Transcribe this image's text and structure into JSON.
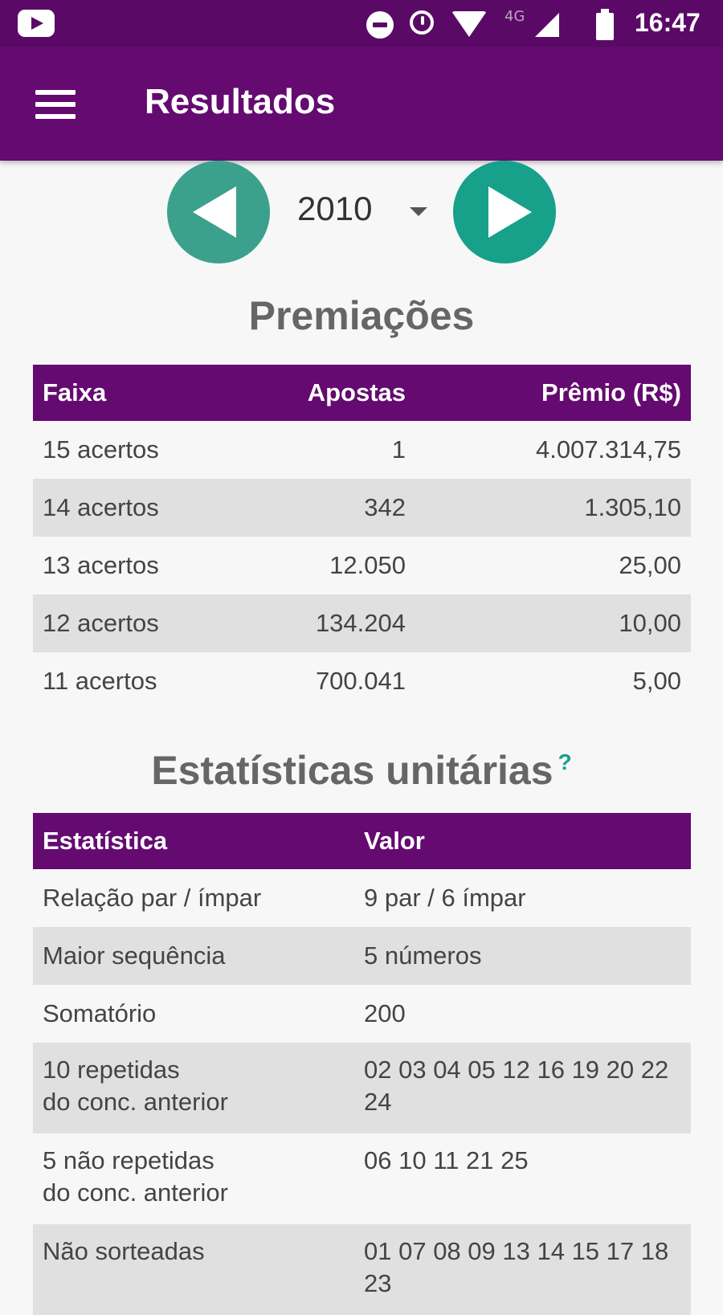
{
  "status_bar": {
    "network": "4G",
    "time": "16:47",
    "icons": [
      "youtube-icon",
      "do-not-disturb-icon",
      "alarm-icon",
      "wifi-icon",
      "signal-icon",
      "battery-icon"
    ]
  },
  "app_bar": {
    "title": "Resultados",
    "menu_icon": "hamburger-menu-icon",
    "color": "#640a70"
  },
  "year_selector": {
    "value": "2010",
    "prev_icon": "arrow-left-icon",
    "next_icon": "arrow-right-icon",
    "accent": "#17a08a"
  },
  "premiacoes": {
    "title": "Premiações",
    "headers": {
      "faixa": "Faixa",
      "apostas": "Apostas",
      "premio": "Prêmio (R$)"
    },
    "rows": [
      {
        "faixa": "15 acertos",
        "apostas": "1",
        "premio": "4.007.314,75"
      },
      {
        "faixa": "14 acertos",
        "apostas": "342",
        "premio": "1.305,10"
      },
      {
        "faixa": "13 acertos",
        "apostas": "12.050",
        "premio": "25,00"
      },
      {
        "faixa": "12 acertos",
        "apostas": "134.204",
        "premio": "10,00"
      },
      {
        "faixa": "11 acertos",
        "apostas": "700.041",
        "premio": "5,00"
      }
    ]
  },
  "estatisticas": {
    "title": "Estatísticas unitárias",
    "help": "?",
    "headers": {
      "estatistica": "Estatística",
      "valor": "Valor"
    },
    "rows": [
      {
        "estatistica": "Relação par / ímpar",
        "valor": "9 par / 6 ímpar"
      },
      {
        "estatistica": "Maior sequência",
        "valor": "5 números"
      },
      {
        "estatistica": "Somatório",
        "valor": "200"
      },
      {
        "estatistica_l1": "10 repetidas",
        "estatistica_l2": "do conc. anterior",
        "valor": "02 03 04 05 12 16 19 20 22 24"
      },
      {
        "estatistica_l1": "5 não repetidas",
        "estatistica_l2": "do conc. anterior",
        "valor": "06 10 11 21 25"
      },
      {
        "estatistica": "Não sorteadas",
        "valor": "01 07 08 09 13 14 15 17 18 23"
      }
    ]
  }
}
